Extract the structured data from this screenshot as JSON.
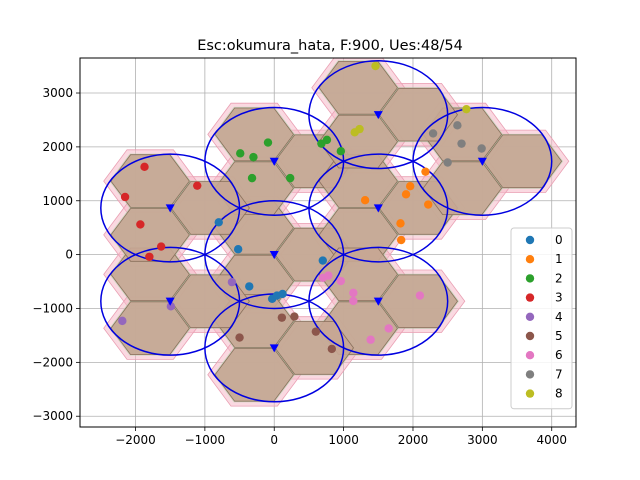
{
  "chart_data": {
    "type": "scatter",
    "title": "Esc:okumura_hata, F:900, Ues:48/54",
    "xlabel": "",
    "ylabel": "",
    "xlim": [
      -2800,
      4350
    ],
    "ylim": [
      -3200,
      3650
    ],
    "x_ticks": [
      -2000,
      -1000,
      0,
      1000,
      2000,
      3000,
      4000
    ],
    "x_tick_labels": [
      "−2000",
      "−1000",
      "0",
      "1000",
      "2000",
      "3000",
      "4000"
    ],
    "y_ticks": [
      -3000,
      -2000,
      -1000,
      0,
      1000,
      2000,
      3000
    ],
    "y_tick_labels": [
      "−3000",
      "−2000",
      "−1000",
      "0",
      "1000",
      "2000",
      "3000"
    ],
    "grid": true,
    "legend_position": "right",
    "hex_radius": 577,
    "coverage_radius": 1000,
    "colors": {
      "hex_edge": "#8a6f5c",
      "hex_fill": "#c6a694",
      "green_region": "#a9d6a9",
      "pink_region": "#f5b9c9",
      "pink_edge": "#eaa0b4",
      "circle": "#0000e0",
      "base_station": "#0000ff"
    },
    "base_stations": [
      {
        "x": 0,
        "y": 0
      },
      {
        "x": 0,
        "y": 1732
      },
      {
        "x": 1500,
        "y": 866
      },
      {
        "x": 1500,
        "y": -866
      },
      {
        "x": 0,
        "y": -1732
      },
      {
        "x": -1500,
        "y": -866
      },
      {
        "x": -1500,
        "y": 866
      },
      {
        "x": 3000,
        "y": 1732
      },
      {
        "x": 1500,
        "y": 2598
      }
    ],
    "series": [
      {
        "name": "0",
        "color": "#1f77b4",
        "x": [
          -800,
          -520,
          -360,
          120,
          700,
          -30,
          40
        ],
        "y": [
          600,
          100,
          -590,
          -730,
          -110,
          -820,
          -760
        ]
      },
      {
        "name": "1",
        "color": "#ff7f0e",
        "x": [
          1310,
          1900,
          1960,
          2180,
          2220,
          1820,
          1830
        ],
        "y": [
          1010,
          1120,
          1270,
          1540,
          930,
          580,
          270
        ]
      },
      {
        "name": "2",
        "color": "#2ca02c",
        "x": [
          -490,
          -300,
          -90,
          -320,
          230,
          680,
          760,
          960
        ],
        "y": [
          1880,
          1810,
          2080,
          1420,
          1420,
          2060,
          2130,
          1920
        ]
      },
      {
        "name": "3",
        "color": "#d62728",
        "x": [
          -1870,
          -2150,
          -1110,
          -1930,
          -1800,
          -1630
        ],
        "y": [
          1630,
          1070,
          1280,
          560,
          -40,
          150
        ]
      },
      {
        "name": "4",
        "color": "#9467bd",
        "x": [
          -2190,
          -1490,
          -610
        ],
        "y": [
          -1230,
          -960,
          -510
        ]
      },
      {
        "name": "5",
        "color": "#8c564b",
        "x": [
          -500,
          110,
          290,
          600,
          830
        ],
        "y": [
          -1540,
          -1170,
          -1150,
          -1430,
          -1750
        ]
      },
      {
        "name": "6",
        "color": "#e377c2",
        "x": [
          700,
          780,
          960,
          1140,
          1140,
          1390,
          1650,
          2100
        ],
        "y": [
          -430,
          -390,
          -490,
          -710,
          -860,
          -1580,
          -1370,
          -760
        ]
      },
      {
        "name": "7",
        "color": "#7f7f7f",
        "x": [
          2290,
          2500,
          2640,
          2700,
          2990
        ],
        "y": [
          2250,
          1710,
          2400,
          2060,
          1970
        ]
      },
      {
        "name": "8",
        "color": "#bcbd22",
        "x": [
          1460,
          1160,
          1230,
          2770
        ],
        "y": [
          3500,
          2270,
          2330,
          2700
        ]
      }
    ]
  }
}
